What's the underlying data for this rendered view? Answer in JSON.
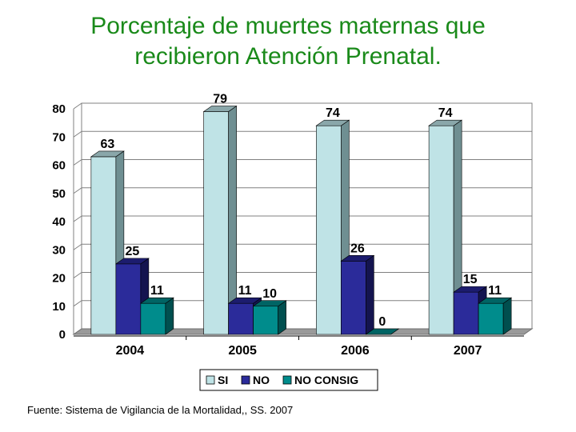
{
  "title": {
    "line1": "Porcentaje de muertes maternas que",
    "line2": "recibieron Atención Prenatal."
  },
  "source": "Fuente: Sistema de Vigilancia de la Mortalidad,, SS. 2007",
  "chart_data": {
    "type": "bar",
    "categories": [
      "2004",
      "2005",
      "2006",
      "2007"
    ],
    "series": [
      {
        "name": "SI",
        "values": [
          63,
          79,
          74,
          74
        ],
        "color": "#bfe3e6",
        "side_color": "#6f8f92",
        "top_color": "#8aa7aa"
      },
      {
        "name": "NO",
        "values": [
          25,
          11,
          26,
          15
        ],
        "color": "#2b2b9a",
        "side_color": "#14144f",
        "top_color": "#1c1c6e"
      },
      {
        "name": "NO CONSIG",
        "values": [
          11,
          10,
          0,
          11
        ],
        "color": "#008c8c",
        "side_color": "#004f4f",
        "top_color": "#006464"
      }
    ],
    "yticks": [
      0,
      10,
      20,
      30,
      40,
      50,
      60,
      70,
      80
    ],
    "ylim": [
      0,
      80
    ],
    "legend_position": "bottom",
    "grid": true
  }
}
